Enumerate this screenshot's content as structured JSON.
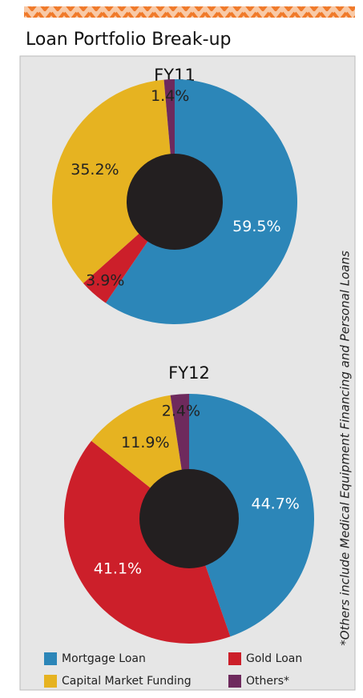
{
  "title": "Loan Portfolio Break-up",
  "note": "*Others include Medical Equipment Financing and Personal Loans",
  "chart_data": [
    {
      "type": "pie",
      "title": "FY11",
      "categories": [
        "Mortgage Loan",
        "Gold Loan",
        "Capital Market Funding",
        "Others*"
      ],
      "values": [
        59.5,
        3.9,
        35.2,
        1.4
      ],
      "value_labels": [
        "59.5%",
        "3.9%",
        "35.2%",
        "1.4%"
      ],
      "colors": [
        "#2c86b8",
        "#cc1f2a",
        "#e6b321",
        "#6e2a5d"
      ]
    },
    {
      "type": "pie",
      "title": "FY12",
      "categories": [
        "Mortgage Loan",
        "Gold Loan",
        "Capital Market Funding",
        "Others*"
      ],
      "values": [
        44.7,
        41.1,
        11.9,
        2.4
      ],
      "value_labels": [
        "44.7%",
        "41.1%",
        "11.9%",
        "2.4%"
      ],
      "colors": [
        "#2c86b8",
        "#cc1f2a",
        "#e6b321",
        "#6e2a5d"
      ]
    }
  ]
}
